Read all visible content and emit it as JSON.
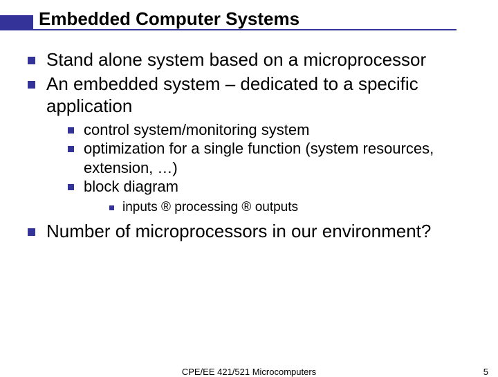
{
  "colors": {
    "accent": "#333399",
    "text": "#000000",
    "background": "#ffffff"
  },
  "title": "Embedded Computer Systems",
  "bullets": {
    "lvl1": [
      "Stand alone system based on a microprocessor",
      "An embedded system – dedicated to a specific application",
      "Number of microprocessors in our environment?"
    ],
    "lvl2": [
      "control system/monitoring system",
      "optimization for a single function (system resources, extension, …)",
      "block diagram"
    ],
    "lvl3": [
      "inputs ® processing ® outputs"
    ]
  },
  "footer": {
    "center": "CPE/EE 421/521 Microcomputers",
    "pageNumber": "5"
  },
  "typography": {
    "title_fontsize": 26,
    "lvl1_fontsize": 26,
    "lvl2_fontsize": 22,
    "lvl3_fontsize": 19,
    "footer_fontsize": 13
  }
}
